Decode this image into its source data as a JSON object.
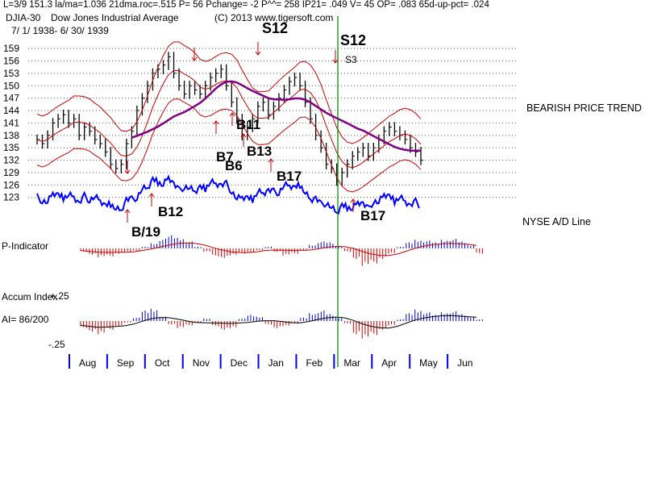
{
  "header": {
    "stats_line": "L=3/9  151.3  la/ma=1.036 21dma.roc=.515 P=  56 Pchange= -2 P^^= 258 IP21= .049 V= 45 OP= .083 65d-up-pct= .024",
    "symbol": "DJIA-30",
    "name": "Dow Jones Industrial Average",
    "copyright": "(C) 2013 www.tigersoft.com",
    "date_range": "7/ 1/ 1938- 6/ 30/ 1939"
  },
  "colors": {
    "price_bars": "#000000",
    "band": "#cc0000",
    "ma_65": "#800080",
    "ad_line": "#0000ff",
    "positive_hist": "#0000cc",
    "negative_hist": "#cc0000",
    "marker_line": "#008000",
    "grid": "#555555"
  },
  "chart_data": [
    {
      "type": "candlestick",
      "title": "DJIA-30 Dow Jones Industrial Average",
      "y_ticks": [
        123,
        126,
        129,
        132,
        135,
        138,
        141,
        144,
        147,
        150,
        153,
        156,
        159
      ],
      "ylim": [
        121,
        160
      ],
      "x_months": [
        "Aug",
        "Sep",
        "Oct",
        "Nov",
        "Dec",
        "Jan",
        "Feb",
        "Mar",
        "Apr",
        "May",
        "Jun"
      ],
      "closes": [
        137,
        136,
        138,
        141,
        142,
        143,
        141,
        142,
        138,
        140,
        139,
        137,
        136,
        134,
        131,
        130,
        131,
        136,
        139,
        144,
        147,
        150,
        153,
        154,
        155,
        157,
        153,
        150,
        148,
        150,
        149,
        148,
        150,
        152,
        153,
        154,
        150,
        146,
        142,
        138,
        140,
        142,
        145,
        146,
        143,
        145,
        147,
        149,
        151,
        152,
        150,
        146,
        142,
        138,
        135,
        131,
        130,
        127,
        129,
        131,
        133,
        134,
        135,
        133,
        135,
        137,
        139,
        140,
        139,
        138,
        137,
        135,
        134,
        132
      ],
      "bands": {
        "upper_pct": 4.5,
        "lower_pct": 4.5
      },
      "annotations": [
        "S12",
        "S12",
        "S3",
        "B11",
        "B7",
        "B6",
        "B13",
        "B17",
        "B12",
        "B/19",
        "B17"
      ],
      "side_labels": [
        "BEARISH PRICE TREND",
        "NYSE A/D Line"
      ]
    },
    {
      "type": "bar",
      "title": "P-Indicator",
      "series_values": [
        -0.2,
        -0.35,
        -0.5,
        -0.45,
        -0.3,
        -0.2,
        -0.15,
        0.1,
        0.3,
        0.55,
        0.75,
        0.6,
        0.4,
        0.1,
        -0.2,
        -0.45,
        -0.55,
        -0.4,
        -0.3,
        -0.25,
        -0.1,
        0.1,
        -0.2,
        -0.4,
        -0.3,
        -0.1,
        0.2,
        0.4,
        0.35,
        0.1,
        -0.2,
        -0.6,
        -1.0,
        -0.85,
        -0.6,
        -0.3,
        0.1,
        0.35,
        0.5,
        0.45,
        0.35,
        0.5,
        0.55,
        0.4,
        0.2,
        -0.3
      ],
      "ylim": [
        -1.1,
        1.1
      ]
    },
    {
      "type": "bar",
      "title": "Accum Index",
      "label_ai": "AI= 86/200",
      "y_ticks_labels": [
        "+.25",
        "-.25"
      ],
      "series_values": [
        -0.08,
        -0.12,
        -0.15,
        -0.1,
        -0.06,
        -0.02,
        0.04,
        0.12,
        0.14,
        0.05,
        -0.04,
        -0.08,
        -0.05,
        -0.02,
        0.03,
        -0.06,
        -0.1,
        -0.08,
        0.03,
        0.07,
        0.05,
        -0.04,
        -0.08,
        -0.06,
        -0.03,
        0.04,
        0.09,
        0.12,
        0.08,
        0.04,
        -0.03,
        -0.15,
        -0.2,
        -0.16,
        -0.1,
        -0.05,
        0.02,
        0.09,
        0.13,
        0.1,
        0.07,
        0.1,
        0.11,
        0.08,
        0.05,
        0.02
      ],
      "ylim": [
        -0.25,
        0.25
      ]
    }
  ],
  "stats_table_headers": [],
  "notes": ""
}
